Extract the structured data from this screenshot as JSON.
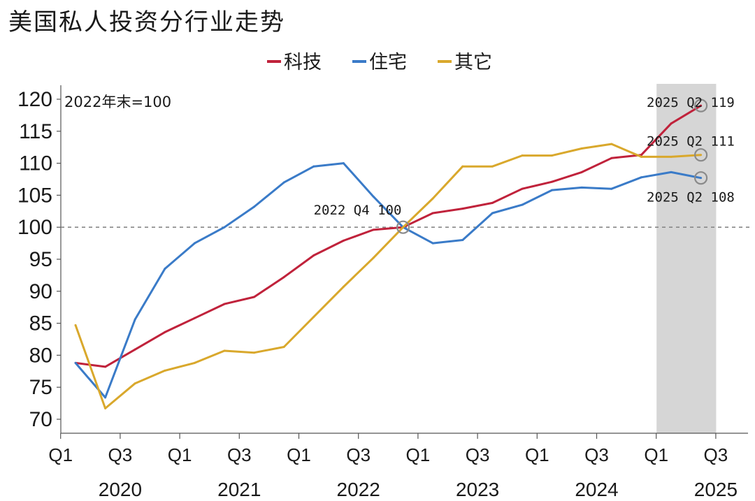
{
  "title": "美国私人投资分行业走势",
  "chart_data": {
    "type": "line",
    "base_note": "2022年末=100",
    "x": [
      "2020Q1",
      "2020Q2",
      "2020Q3",
      "2020Q4",
      "2021Q1",
      "2021Q2",
      "2021Q3",
      "2021Q4",
      "2022Q1",
      "2022Q2",
      "2022Q3",
      "2022Q4",
      "2023Q1",
      "2023Q2",
      "2023Q3",
      "2023Q4",
      "2024Q1",
      "2024Q2",
      "2024Q3",
      "2024Q4",
      "2025Q1",
      "2025Q2"
    ],
    "x_tick_labels": [
      "Q1",
      "Q3",
      "Q1",
      "Q3",
      "Q1",
      "Q3",
      "Q1",
      "Q3",
      "Q1",
      "Q3",
      "Q1",
      "Q3"
    ],
    "year_labels": [
      "2020",
      "2021",
      "2022",
      "2023",
      "2024",
      "2025"
    ],
    "ylim": [
      70,
      120
    ],
    "y_ticks": [
      120,
      115,
      110,
      105,
      100,
      95,
      90,
      85,
      80,
      75,
      70
    ],
    "reference_line": 100,
    "highlight_period": [
      "2025Q1",
      "2025Q2"
    ],
    "legend_position": "top-center",
    "series": [
      {
        "name": "科技",
        "color": "#c0223b",
        "values": [
          78.8,
          78.2,
          80.9,
          83.6,
          85.8,
          88.0,
          89.1,
          92.2,
          95.6,
          97.9,
          99.6,
          100.0,
          102.2,
          102.9,
          103.8,
          106.0,
          107.1,
          108.6,
          110.8,
          111.3,
          116.2,
          119.0
        ]
      },
      {
        "name": "住宅",
        "color": "#3a7bc8",
        "values": [
          78.8,
          73.4,
          85.6,
          93.5,
          97.5,
          100.0,
          103.2,
          107.0,
          109.5,
          110.0,
          104.8,
          100.0,
          97.5,
          98.0,
          102.2,
          103.5,
          105.8,
          106.2,
          106.0,
          107.8,
          108.6,
          107.7
        ]
      },
      {
        "name": "其它",
        "color": "#d9a82c",
        "values": [
          84.7,
          71.7,
          75.6,
          77.6,
          78.8,
          80.7,
          80.4,
          81.3,
          86.0,
          90.7,
          95.2,
          100.0,
          104.5,
          109.5,
          109.5,
          111.2,
          111.2,
          112.3,
          113.0,
          111.0,
          111.0,
          111.3
        ]
      }
    ],
    "annotations": [
      {
        "text": "2022 Q4 100",
        "at": "2022Q4",
        "series": "科技"
      },
      {
        "text": "2025 Q2 119",
        "at": "2025Q2",
        "series": "科技"
      },
      {
        "text": "2025 Q2 111",
        "at": "2025Q2",
        "series": "其它"
      },
      {
        "text": "2025 Q2 108",
        "at": "2025Q2",
        "series": "住宅"
      }
    ]
  }
}
